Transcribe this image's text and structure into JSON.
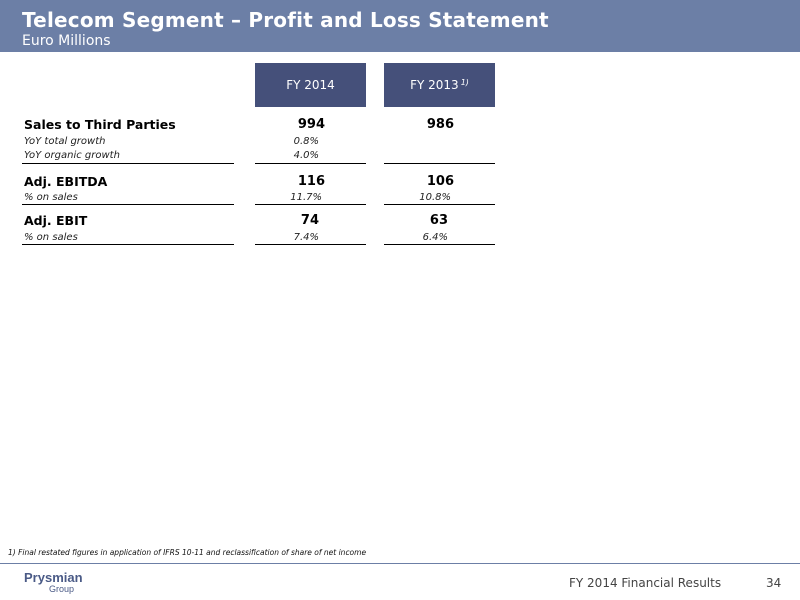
{
  "header": {
    "title": "Telecom Segment – Profit and Loss Statement",
    "subtitle": "Euro Millions"
  },
  "columns": {
    "fy2014": "FY 2014",
    "fy2013": "FY 2013",
    "fy2013_note": "1)"
  },
  "rows": {
    "sales": {
      "label": "Sales to Third Parties",
      "fy2014": "994",
      "fy2013": "986"
    },
    "yoy_total": {
      "label": "YoY total growth",
      "fy2014": "0.8%",
      "fy2013": ""
    },
    "yoy_organic": {
      "label": "YoY organic growth",
      "fy2014": "4.0%",
      "fy2013": ""
    },
    "ebitda": {
      "label": "Adj. EBITDA",
      "fy2014": "116",
      "fy2013": "106"
    },
    "ebitda_margin": {
      "label": "% on sales",
      "fy2014": "11.7%",
      "fy2013": "10.8%"
    },
    "ebit": {
      "label": "Adj. EBIT",
      "fy2014": "74",
      "fy2013": "63"
    },
    "ebit_margin": {
      "label": "% on sales",
      "fy2014": "7.4%",
      "fy2013": "6.4%"
    }
  },
  "footnote": "1) Final restated figures in application of IFRS 10-11 and reclassification of share of net income",
  "footer": {
    "logo_line1": "Prysmian",
    "logo_line2": "Group",
    "text": "FY 2014 Financial Results",
    "page_number": "34"
  }
}
